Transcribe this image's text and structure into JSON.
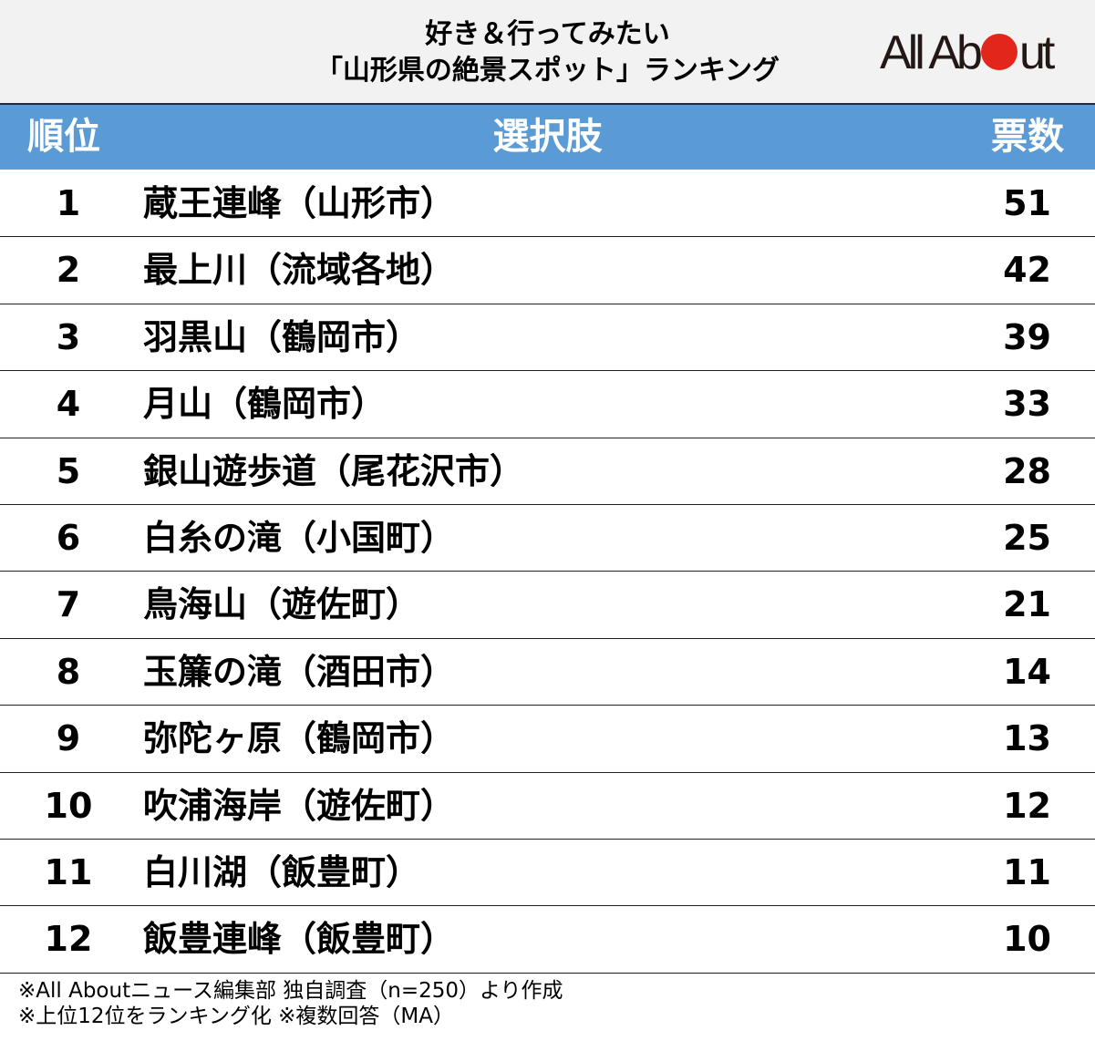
{
  "header": {
    "title_line1": "好き＆行ってみたい",
    "title_line2": "「山形県の絶景スポット」ランキング",
    "logo_left": "All Ab",
    "logo_right": "ut"
  },
  "table": {
    "columns": [
      "順位",
      "選択肢",
      "票数"
    ],
    "rows": [
      {
        "rank": "1",
        "name": "蔵王連峰（山形市）",
        "votes": "51"
      },
      {
        "rank": "2",
        "name": "最上川（流域各地）",
        "votes": "42"
      },
      {
        "rank": "3",
        "name": "羽黒山（鶴岡市）",
        "votes": "39"
      },
      {
        "rank": "4",
        "name": "月山（鶴岡市）",
        "votes": "33"
      },
      {
        "rank": "5",
        "name": "銀山遊歩道（尾花沢市）",
        "votes": "28"
      },
      {
        "rank": "6",
        "name": "白糸の滝（小国町）",
        "votes": "25"
      },
      {
        "rank": "7",
        "name": "鳥海山（遊佐町）",
        "votes": "21"
      },
      {
        "rank": "8",
        "name": "玉簾の滝（酒田市）",
        "votes": "14"
      },
      {
        "rank": "9",
        "name": "弥陀ヶ原（鶴岡市）",
        "votes": "13"
      },
      {
        "rank": "10",
        "name": "吹浦海岸（遊佐町）",
        "votes": "12"
      },
      {
        "rank": "11",
        "name": "白川湖（飯豊町）",
        "votes": "11"
      },
      {
        "rank": "12",
        "name": "飯豊連峰（飯豊町）",
        "votes": "10"
      }
    ]
  },
  "footer": {
    "line1": "※All Aboutニュース編集部 独自調査（n=250）より作成",
    "line2": "※上位12位をランキング化 ※複数回答（MA）"
  },
  "colors": {
    "header_blue": "#5b9bd5",
    "logo_red": "#e3261c",
    "top_bg": "#f2f2f2"
  },
  "chart_data": {
    "type": "table",
    "title": "好き＆行ってみたい「山形県の絶景スポット」ランキング",
    "columns": [
      "順位",
      "選択肢",
      "票数"
    ],
    "categories": [
      "蔵王連峰（山形市）",
      "最上川（流域各地）",
      "羽黒山（鶴岡市）",
      "月山（鶴岡市）",
      "銀山遊歩道（尾花沢市）",
      "白糸の滝（小国町）",
      "鳥海山（遊佐町）",
      "玉簾の滝（酒田市）",
      "弥陀ヶ原（鶴岡市）",
      "吹浦海岸（遊佐町）",
      "白川湖（飯豊町）",
      "飯豊連峰（飯豊町）"
    ],
    "values": [
      51,
      42,
      39,
      33,
      28,
      25,
      21,
      14,
      13,
      12,
      11,
      10
    ],
    "notes": [
      "※All Aboutニュース編集部 独自調査（n=250）より作成",
      "※上位12位をランキング化 ※複数回答（MA）"
    ]
  }
}
